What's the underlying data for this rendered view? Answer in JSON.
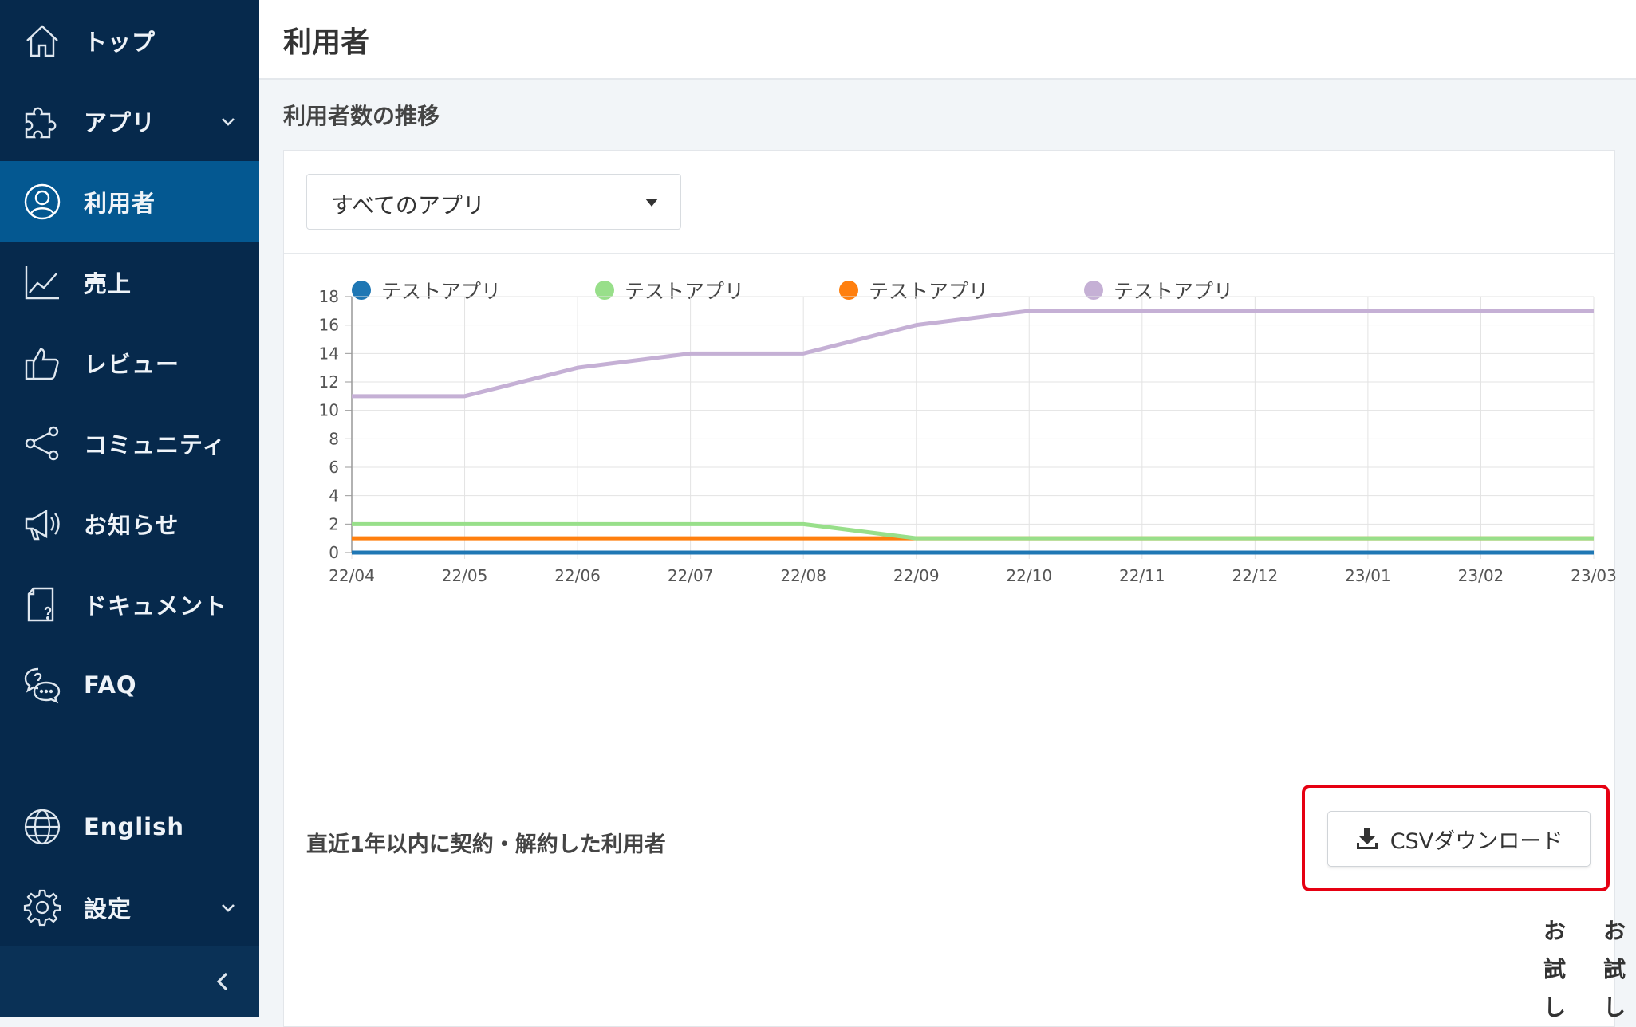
{
  "sidebar": {
    "items": [
      {
        "label": "トップ",
        "icon": "home-icon"
      },
      {
        "label": "アプリ",
        "icon": "puzzle-icon",
        "has_children": true
      },
      {
        "label": "利用者",
        "icon": "user-icon",
        "active": true
      },
      {
        "label": "売上",
        "icon": "line-chart-icon"
      },
      {
        "label": "レビュー",
        "icon": "thumbs-up-icon"
      },
      {
        "label": "コミュニティ",
        "icon": "share-icon"
      },
      {
        "label": "お知らせ",
        "icon": "megaphone-icon"
      },
      {
        "label": "ドキュメント",
        "icon": "document-icon"
      },
      {
        "label": "FAQ",
        "icon": "faq-chat-icon"
      }
    ],
    "language": {
      "label": "English",
      "icon": "globe-icon"
    },
    "settings": {
      "label": "設定",
      "icon": "gear-icon",
      "has_children": true
    },
    "collapse_icon": "chevron-left-icon",
    "colors": {
      "background": "#06294c",
      "active": "#045891"
    }
  },
  "header": {
    "title": "利用者"
  },
  "main": {
    "section_title": "利用者数の推移",
    "app_select": {
      "value": "すべてのアプリ"
    },
    "subsection_title": "直近1年以内に契約・解約した利用者",
    "csv_button": {
      "label": "CSVダウンロード",
      "icon": "download-icon"
    },
    "table_headers": [
      "お試し",
      "お試し"
    ]
  },
  "chart_data": {
    "type": "line",
    "x": [
      "22/04",
      "22/05",
      "22/06",
      "22/07",
      "22/08",
      "22/09",
      "22/10",
      "22/11",
      "22/12",
      "23/01",
      "23/02",
      "23/03"
    ],
    "ylim": [
      0,
      18
    ],
    "yticks": [
      0,
      2,
      4,
      6,
      8,
      10,
      12,
      14,
      16,
      18
    ],
    "grid": true,
    "legend_position": "top-left",
    "series": [
      {
        "name": "テストアプリ",
        "color": "#1f77b4",
        "values": [
          0,
          0,
          0,
          0,
          0,
          0,
          0,
          0,
          0,
          0,
          0,
          0
        ]
      },
      {
        "name": "テストアプリ",
        "color": "#98df8a",
        "values": [
          2,
          2,
          2,
          2,
          2,
          1,
          1,
          1,
          1,
          1,
          1,
          1
        ]
      },
      {
        "name": "テストアプリ",
        "color": "#ff7f0e",
        "values": [
          1,
          1,
          1,
          1,
          1,
          1,
          1,
          1,
          1,
          1,
          1,
          1
        ]
      },
      {
        "name": "テストアプリ",
        "color": "#c5b0d5",
        "values": [
          11,
          11,
          13,
          14,
          14,
          16,
          17,
          17,
          17,
          17,
          17,
          17
        ]
      }
    ]
  },
  "highlight_color": "#e60012"
}
